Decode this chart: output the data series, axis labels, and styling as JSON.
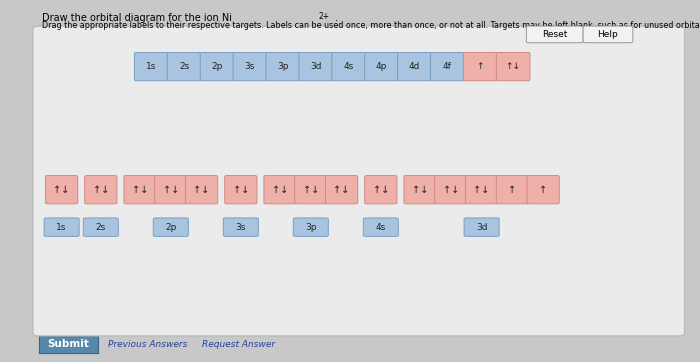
{
  "bg_color": "#c8c8c8",
  "panel_bg": "#ebebeb",
  "panel_border": "#bbbbbb",
  "blue_fc": "#a8c4e0",
  "blue_ec": "#7a9ec0",
  "pink_fc": "#f0b0aa",
  "pink_ec": "#d08888",
  "submit_fc": "#5588aa",
  "top_labels": [
    "1s",
    "2s",
    "2p",
    "3s",
    "3p",
    "3d",
    "4s",
    "4p",
    "4d",
    "4f",
    "↑",
    "↑↓"
  ],
  "top_colors": [
    "blue",
    "blue",
    "blue",
    "blue",
    "blue",
    "blue",
    "blue",
    "blue",
    "blue",
    "blue",
    "pink",
    "pink"
  ],
  "groups": [
    {
      "label": "1s",
      "arrows": [
        "↑↓"
      ]
    },
    {
      "label": "2s",
      "arrows": [
        "↑↓"
      ]
    },
    {
      "label": "2p",
      "arrows": [
        "↑↓",
        "↑↓",
        "↑↓"
      ]
    },
    {
      "label": "3s",
      "arrows": [
        "↑↓"
      ]
    },
    {
      "label": "3p",
      "arrows": [
        "↑↓",
        "↑↓",
        "↑↓"
      ]
    },
    {
      "label": "4s",
      "arrows": [
        "↑↓"
      ]
    },
    {
      "label": "3d",
      "arrows": [
        "↑↓",
        "↑↓",
        "↑↓",
        "↑",
        "↑"
      ]
    }
  ]
}
